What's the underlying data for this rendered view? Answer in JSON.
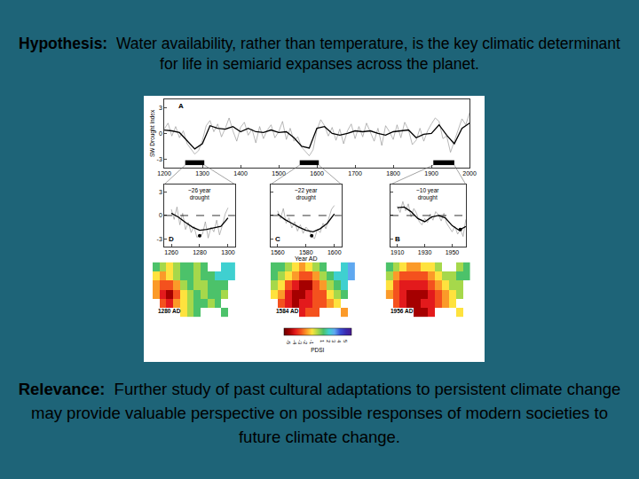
{
  "slide": {
    "hypothesis_label": "Hypothesis:",
    "hypothesis": "Water availability, rather than temperature, is the key climatic determinant for life in semiarid expanses across the planet.",
    "relevance_label": "Relevance:",
    "relevance": "Further study of past cultural adaptations to persistent climate change may provide valuable perspective on possible responses of modern societies to future climate change."
  },
  "chart_data": [
    {
      "type": "line",
      "panel": "A",
      "y_label": "SW Drought Index",
      "xlim": [
        1200,
        2000
      ],
      "xticks": [
        1200,
        1300,
        1400,
        1500,
        1600,
        1700,
        1800,
        1900,
        2000
      ],
      "ylim": [
        -4,
        4
      ],
      "yticks": [
        -3,
        0,
        3
      ],
      "highlight_periods": [
        [
          1255,
          1305
        ],
        [
          1555,
          1605
        ],
        [
          1905,
          1960
        ]
      ],
      "series": [
        {
          "color": "#9a9a9a",
          "x": [
            1200,
            1210,
            1220,
            1230,
            1240,
            1250,
            1260,
            1270,
            1280,
            1290,
            1300,
            1310,
            1320,
            1330,
            1340,
            1350,
            1360,
            1370,
            1380,
            1390,
            1400,
            1410,
            1420,
            1430,
            1440,
            1450,
            1460,
            1470,
            1480,
            1490,
            1500,
            1510,
            1520,
            1530,
            1540,
            1550,
            1560,
            1570,
            1580,
            1590,
            1600,
            1610,
            1620,
            1630,
            1640,
            1650,
            1660,
            1670,
            1680,
            1690,
            1700,
            1710,
            1720,
            1730,
            1740,
            1750,
            1760,
            1770,
            1780,
            1790,
            1800,
            1810,
            1820,
            1830,
            1840,
            1850,
            1860,
            1870,
            1880,
            1890,
            1900,
            1910,
            1920,
            1930,
            1940,
            1950,
            1960,
            1970,
            1980,
            1990,
            2000
          ],
          "values": [
            0.5,
            1.2,
            -0.3,
            0.8,
            -0.5,
            0.3,
            -1.2,
            -1.8,
            -2.4,
            -2.0,
            -0.8,
            0.9,
            1.5,
            0.2,
            1.1,
            -0.4,
            0.6,
            1.8,
            0.3,
            -0.9,
            0.7,
            1.3,
            -0.2,
            0.5,
            -1.1,
            0.8,
            -0.6,
            0.4,
            1.0,
            -0.5,
            0.2,
            1.4,
            -0.7,
            0.6,
            -0.9,
            -0.4,
            -1.6,
            -2.1,
            -2.6,
            -1.9,
            0.4,
            1.6,
            0.9,
            -0.3,
            0.7,
            -0.8,
            0.5,
            -1.2,
            0.3,
            1.1,
            -0.6,
            0.8,
            -0.4,
            1.2,
            0.1,
            -0.9,
            0.6,
            -1.4,
            0.9,
            0.2,
            -0.7,
            1.0,
            -0.5,
            1.3,
            0.4,
            -1.3,
            -0.8,
            0.6,
            -0.9,
            0.3,
            1.1,
            1.8,
            1.4,
            -0.6,
            -0.3,
            -2.2,
            -0.9,
            0.5,
            1.7,
            1.0,
            2.4
          ]
        },
        {
          "color": "#000000",
          "x": [
            1200,
            1220,
            1240,
            1260,
            1280,
            1300,
            1320,
            1340,
            1360,
            1380,
            1400,
            1420,
            1440,
            1460,
            1480,
            1500,
            1520,
            1540,
            1560,
            1580,
            1600,
            1620,
            1640,
            1660,
            1680,
            1700,
            1720,
            1740,
            1760,
            1780,
            1800,
            1820,
            1840,
            1860,
            1880,
            1900,
            1920,
            1940,
            1960,
            1980,
            2000
          ],
          "values": [
            0.4,
            0.3,
            0.1,
            -0.8,
            -1.8,
            -1.2,
            0.9,
            0.6,
            0.5,
            0.8,
            0.2,
            0.6,
            0.2,
            0.1,
            0.4,
            0.1,
            0.2,
            -0.5,
            -1.5,
            -1.7,
            0.6,
            0.8,
            0.0,
            -0.2,
            0.0,
            0.3,
            0.2,
            0.3,
            0.0,
            -0.2,
            0.2,
            0.3,
            0.4,
            -0.5,
            -0.1,
            0.0,
            1.0,
            -0.2,
            -1.2,
            0.6,
            1.2
          ]
        }
      ]
    },
    {
      "type": "line",
      "panel": "D",
      "annotation": [
        "~26 year",
        "drought"
      ],
      "xlim": [
        1255,
        1305
      ],
      "xticks": [
        1260,
        1280,
        1300
      ],
      "ylim": [
        -4,
        4
      ],
      "yticks": [
        -3,
        0,
        3
      ],
      "reference_line": 0,
      "highlight": {
        "x": 1280,
        "y": -2.6,
        "marker": "circle"
      },
      "series": [
        {
          "color": "#9a9a9a",
          "x": [
            1260,
            1262,
            1264,
            1266,
            1268,
            1270,
            1272,
            1274,
            1276,
            1278,
            1280,
            1282,
            1284,
            1286,
            1288,
            1290,
            1292,
            1294,
            1296,
            1298,
            1300
          ],
          "values": [
            0.8,
            -0.5,
            1.1,
            -1.2,
            0.3,
            -1.8,
            -0.9,
            -2.2,
            -1.4,
            -2.8,
            -2.6,
            -2.4,
            -0.8,
            -2.9,
            -1.5,
            -2.1,
            -0.6,
            -2.5,
            -1.3,
            0.2,
            1.0
          ]
        },
        {
          "color": "#000000",
          "x": [
            1260,
            1265,
            1270,
            1275,
            1280,
            1285,
            1290,
            1295,
            1300
          ],
          "values": [
            0.3,
            -0.2,
            -0.9,
            -1.5,
            -1.9,
            -1.8,
            -1.6,
            -1.4,
            -0.3
          ]
        }
      ]
    },
    {
      "type": "line",
      "panel": "C",
      "annotation": [
        "~22 year",
        "drought"
      ],
      "x_label": "Year AD",
      "tick_labels": "x",
      "xlim": [
        1555,
        1605
      ],
      "xticks": [
        1560,
        1580,
        1600
      ],
      "ylim": [
        -4,
        4
      ],
      "yticks": [
        -3,
        0,
        3
      ],
      "reference_line": 0,
      "highlight": {
        "x": 1584,
        "y": -2.6,
        "marker": "circle"
      },
      "series": [
        {
          "color": "#9a9a9a",
          "x": [
            1560,
            1562,
            1564,
            1566,
            1568,
            1570,
            1572,
            1574,
            1576,
            1578,
            1580,
            1582,
            1584,
            1586,
            1588,
            1590,
            1592,
            1594,
            1596,
            1598,
            1600
          ],
          "values": [
            0.6,
            -0.4,
            0.9,
            -1.0,
            -0.3,
            -1.6,
            -0.8,
            -2.0,
            -1.2,
            -2.3,
            -1.5,
            -1.9,
            -2.6,
            -3.0,
            -1.8,
            -2.2,
            -1.0,
            -1.7,
            -0.4,
            0.8,
            1.3
          ]
        },
        {
          "color": "#000000",
          "x": [
            1560,
            1565,
            1570,
            1575,
            1580,
            1585,
            1590,
            1595,
            1600
          ],
          "values": [
            0.2,
            -0.5,
            -1.0,
            -1.5,
            -1.9,
            -2.1,
            -1.7,
            -1.0,
            0.2
          ]
        }
      ]
    },
    {
      "type": "line",
      "panel": "B",
      "annotation": [
        "~10 year",
        "drought"
      ],
      "tick_labels": "x",
      "xlim": [
        1905,
        1960
      ],
      "xticks": [
        1910,
        1930,
        1950
      ],
      "ylim": [
        -4,
        4
      ],
      "yticks": [
        -3,
        0,
        3
      ],
      "reference_line": 0,
      "highlight": {
        "x": 1956,
        "y": -1.8,
        "marker": "circle"
      },
      "series": [
        {
          "color": "#9a9a9a",
          "x": [
            1910,
            1912,
            1914,
            1916,
            1918,
            1920,
            1922,
            1924,
            1926,
            1928,
            1930,
            1932,
            1934,
            1936,
            1938,
            1940,
            1942,
            1944,
            1946,
            1948,
            1950,
            1952,
            1954,
            1956,
            1958,
            1960
          ],
          "values": [
            1.2,
            0.4,
            1.8,
            0.6,
            1.5,
            -0.2,
            0.9,
            0.3,
            -0.8,
            -1.2,
            -0.4,
            -0.9,
            0.2,
            -0.6,
            0.5,
            0.1,
            -0.7,
            0.3,
            -1.0,
            -1.6,
            -2.1,
            -1.4,
            -2.4,
            -1.8,
            -2.7,
            -0.5
          ]
        },
        {
          "color": "#000000",
          "x": [
            1910,
            1915,
            1920,
            1925,
            1930,
            1935,
            1940,
            1945,
            1950,
            1955,
            1960
          ],
          "values": [
            1.0,
            1.1,
            0.5,
            -0.4,
            -0.8,
            -0.2,
            0.0,
            -0.3,
            -1.3,
            -1.9,
            -1.4
          ]
        }
      ]
    },
    {
      "type": "heatmap",
      "label": "1280 AD",
      "tick_labels": false,
      "cells": [
        [
          1,
          0,
          -1,
          0,
          1,
          1,
          0,
          1,
          null,
          null,
          2,
          2
        ],
        [
          -1,
          -2,
          -1,
          0,
          1,
          1,
          0,
          1,
          1,
          2,
          2,
          2
        ],
        [
          -2,
          -3,
          -3,
          -2,
          0,
          1,
          0,
          0,
          1,
          1,
          1,
          null
        ],
        [
          -2,
          -4,
          -5,
          -3,
          -1,
          0,
          1,
          0,
          1,
          1,
          0,
          null
        ],
        [
          null,
          -3,
          -4,
          -2,
          -1,
          0,
          1,
          1,
          0,
          1,
          null,
          null
        ],
        [
          null,
          null,
          null,
          null,
          -1,
          0,
          1,
          null,
          null,
          null,
          1,
          null
        ]
      ]
    },
    {
      "type": "heatmap",
      "label": "1584 AD",
      "tick_labels": false,
      "cells": [
        [
          1,
          1,
          0,
          -1,
          -2,
          -1,
          0,
          1,
          null,
          null,
          2,
          3
        ],
        [
          1,
          0,
          -1,
          -2,
          -3,
          -3,
          -2,
          0,
          1,
          2,
          2,
          3
        ],
        [
          0,
          -1,
          -3,
          -4,
          -5,
          -5,
          -3,
          -2,
          0,
          1,
          2,
          null
        ],
        [
          -1,
          -2,
          -4,
          -5,
          -5,
          -4,
          -3,
          -3,
          -1,
          0,
          1,
          null
        ],
        [
          null,
          -3,
          -4,
          -5,
          -4,
          -4,
          -3,
          -3,
          -2,
          -1,
          null,
          null
        ],
        [
          null,
          null,
          null,
          null,
          -4,
          -3,
          -3,
          null,
          null,
          null,
          -2,
          null
        ]
      ],
      "colorbar": {
        "range": [
          -6,
          6
        ],
        "ticks": [
          -5,
          -4,
          -3,
          -2,
          -1,
          1,
          2,
          3,
          4,
          5
        ],
        "label": "PDSI"
      }
    },
    {
      "type": "heatmap",
      "label": "1956 AD",
      "tick_labels": false,
      "cells": [
        [
          1,
          0,
          -1,
          -2,
          -2,
          -1,
          -1,
          0,
          null,
          null,
          0,
          1
        ],
        [
          0,
          -2,
          -3,
          -3,
          -3,
          -3,
          -2,
          -1,
          0,
          0,
          1,
          1
        ],
        [
          -1,
          -3,
          -4,
          -4,
          -4,
          -4,
          -3,
          -2,
          -1,
          0,
          0,
          null
        ],
        [
          -2,
          -3,
          -4,
          -5,
          -5,
          -5,
          -4,
          -3,
          -2,
          -1,
          0,
          null
        ],
        [
          null,
          -3,
          -4,
          -5,
          -5,
          -4,
          -4,
          -3,
          -2,
          -1,
          null,
          null
        ],
        [
          null,
          null,
          null,
          null,
          -5,
          -5,
          -4,
          null,
          null,
          null,
          -1,
          null
        ]
      ]
    }
  ]
}
